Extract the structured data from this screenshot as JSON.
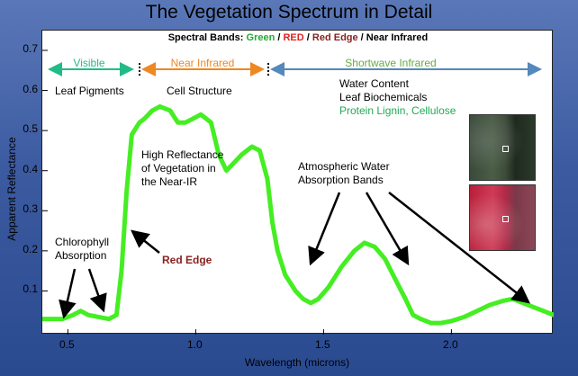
{
  "title": "The Vegetation Spectrum in Detail",
  "bands_caption": {
    "prefix": "Spectral Bands: ",
    "green": "Green",
    "red": "RED",
    "red_edge": "Red Edge",
    "nir": "Near Infrared",
    "separator": " / "
  },
  "regions": {
    "visible": "Visible",
    "near_infrared": "Near Infrared",
    "shortwave_infrared": "Shortwave Infrared"
  },
  "annotations": {
    "leaf_pigments": "Leaf Pigments",
    "cell_structure": "Cell Structure",
    "water_content": "Water Content",
    "leaf_biochemicals": "Leaf Biochemicals",
    "protein": "Protein Lignin, Cellulose",
    "high_reflectance_1": "High Reflectance",
    "high_reflectance_2": "of Vegetation in",
    "high_reflectance_3": "the Near-IR",
    "chlorophyll_1": "Chlorophyll",
    "chlorophyll_2": "Absorption",
    "red_edge": "Red Edge",
    "water_bands_1": "Atmospheric Water",
    "water_bands_2": "Absorption Bands"
  },
  "colors": {
    "curve": "#44ee22",
    "visible": "#22bb88",
    "near_infrared": "#ee8822",
    "shortwave": "#66aa44",
    "swir_arrow": "#5588bb",
    "red_edge": "#882222",
    "red": "#dd2222",
    "protein": "#22aa55"
  },
  "chart_data": {
    "type": "line",
    "title": "",
    "xlabel": "Wavelength (microns)",
    "ylabel": "Apparent Reflectance",
    "xlim": [
      0.4,
      2.4
    ],
    "ylim": [
      0.0,
      0.7
    ],
    "xticks": [
      0.5,
      1.0,
      1.5,
      2.0
    ],
    "xtick_labels": [
      "0.5",
      "1.0",
      "1.5",
      "2.0"
    ],
    "yticks": [
      0.1,
      0.2,
      0.3,
      0.4,
      0.5,
      0.6,
      0.7
    ],
    "ytick_labels": [
      "0.1",
      "0.2",
      "0.3",
      "0.4",
      "0.5",
      "0.6",
      "0.7"
    ],
    "region_boundaries": [
      0.74,
      1.3
    ],
    "series": [
      {
        "x": [
          0.4,
          0.45,
          0.48,
          0.52,
          0.55,
          0.58,
          0.62,
          0.66,
          0.69,
          0.71,
          0.73,
          0.75,
          0.78,
          0.8,
          0.83,
          0.86,
          0.9,
          0.93,
          0.96,
          0.99,
          1.02,
          1.06,
          1.09,
          1.12,
          1.15,
          1.18,
          1.22,
          1.25,
          1.28,
          1.3,
          1.32,
          1.35,
          1.39,
          1.42,
          1.45,
          1.48,
          1.52,
          1.57,
          1.62,
          1.66,
          1.7,
          1.74,
          1.78,
          1.82,
          1.85,
          1.88,
          1.92,
          1.96,
          2.0,
          2.05,
          2.1,
          2.15,
          2.2,
          2.24,
          2.28,
          2.32,
          2.36,
          2.4
        ],
        "y": [
          0.03,
          0.03,
          0.03,
          0.04,
          0.05,
          0.04,
          0.035,
          0.03,
          0.04,
          0.15,
          0.35,
          0.49,
          0.52,
          0.53,
          0.55,
          0.56,
          0.55,
          0.52,
          0.52,
          0.53,
          0.54,
          0.52,
          0.44,
          0.4,
          0.42,
          0.44,
          0.46,
          0.45,
          0.38,
          0.27,
          0.2,
          0.14,
          0.1,
          0.08,
          0.07,
          0.08,
          0.11,
          0.16,
          0.2,
          0.22,
          0.21,
          0.18,
          0.13,
          0.08,
          0.04,
          0.03,
          0.02,
          0.02,
          0.025,
          0.035,
          0.05,
          0.065,
          0.075,
          0.08,
          0.07,
          0.06,
          0.05,
          0.04
        ]
      }
    ]
  }
}
